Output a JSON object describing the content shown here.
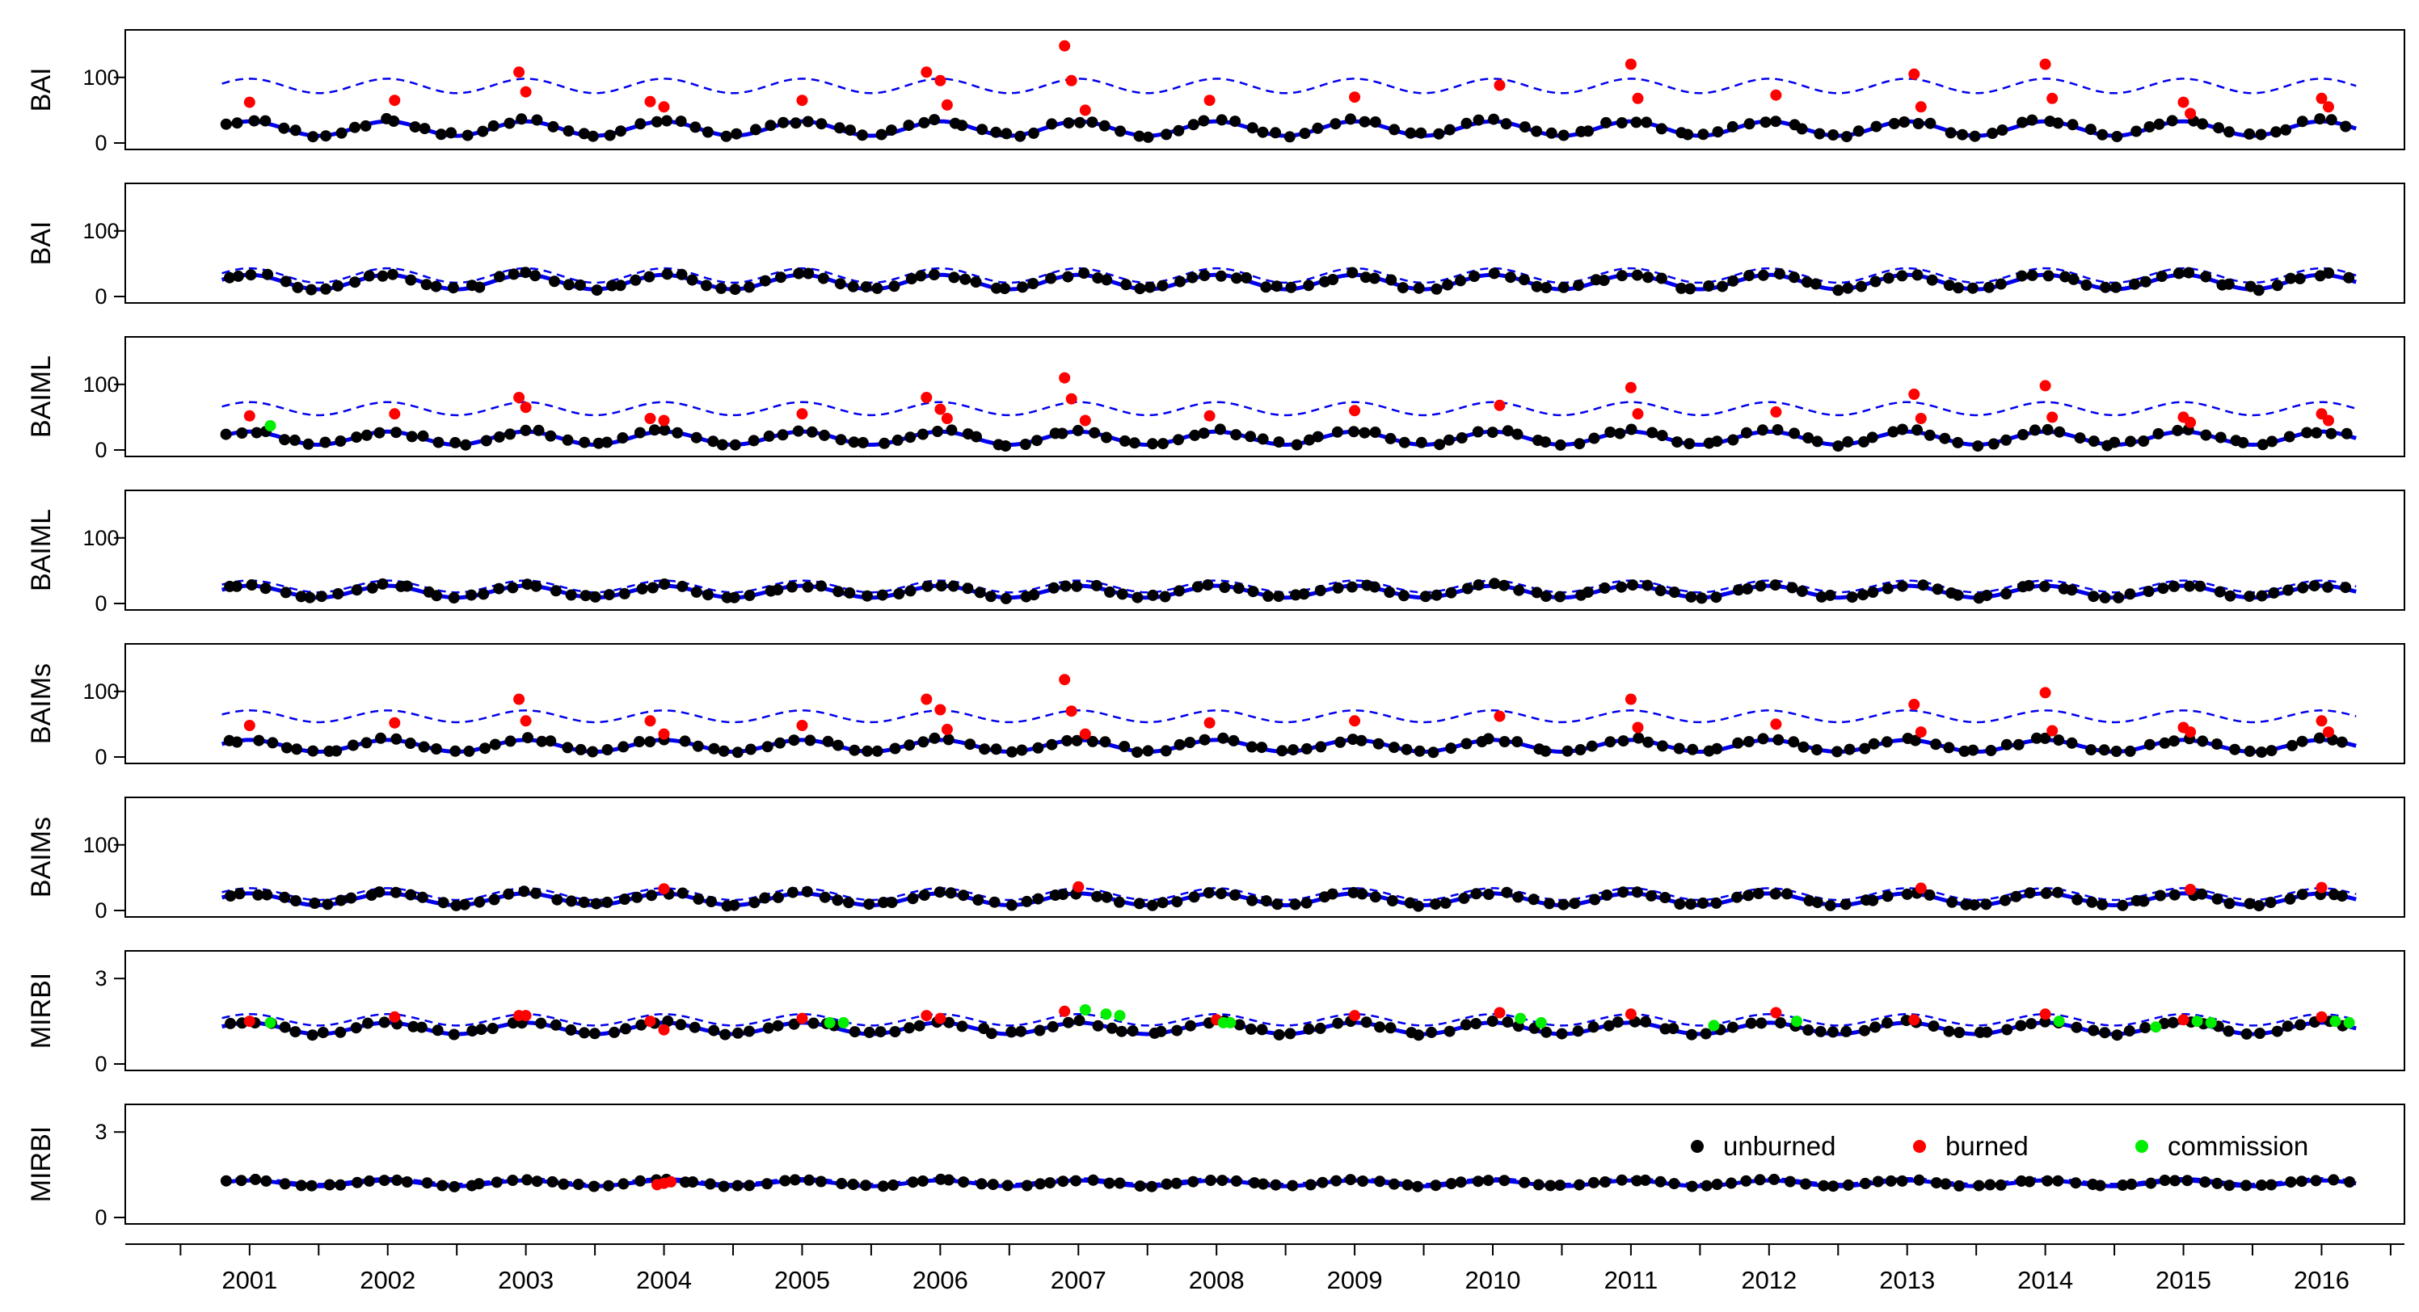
{
  "chart_data": [
    {
      "type": "scatter",
      "ylabel": "BAI",
      "ylim": [
        0,
        165
      ],
      "yticks": [
        0,
        100
      ],
      "amplitude_note": "seasonal harmonic fit (blue solid) with upper threshold (blue dashed)",
      "fit": {
        "mean": 22,
        "amplitude": 11,
        "band": 65
      },
      "series": [
        {
          "name": "unburned",
          "sample_values": [
            16,
            40,
            20,
            12,
            10,
            22,
            35,
            30,
            28,
            18,
            22,
            28,
            30,
            35,
            40,
            30,
            20,
            15,
            22,
            28,
            35,
            30,
            25,
            30
          ]
        },
        {
          "name": "burned",
          "points": [
            [
              2001.0,
              62
            ],
            [
              2002.05,
              65
            ],
            [
              2002.95,
              108
            ],
            [
              2003.0,
              78
            ],
            [
              2003.9,
              63
            ],
            [
              2004.0,
              55
            ],
            [
              2005.0,
              65
            ],
            [
              2005.9,
              108
            ],
            [
              2006.0,
              95
            ],
            [
              2006.05,
              58
            ],
            [
              2006.9,
              148
            ],
            [
              2006.95,
              95
            ],
            [
              2007.05,
              50
            ],
            [
              2007.95,
              65
            ],
            [
              2009.0,
              70
            ],
            [
              2010.05,
              88
            ],
            [
              2011.0,
              120
            ],
            [
              2011.05,
              68
            ],
            [
              2012.05,
              73
            ],
            [
              2013.05,
              105
            ],
            [
              2013.1,
              55
            ],
            [
              2014.0,
              120
            ],
            [
              2014.05,
              68
            ],
            [
              2015.0,
              62
            ],
            [
              2015.05,
              45
            ],
            [
              2016.0,
              68
            ],
            [
              2016.05,
              55
            ]
          ]
        }
      ]
    },
    {
      "type": "scatter",
      "ylabel": "BAI",
      "ylim": [
        0,
        165
      ],
      "yticks": [
        0,
        100
      ],
      "fit": {
        "mean": 22,
        "amplitude": 11,
        "band": 10
      },
      "series": [
        {
          "name": "unburned",
          "sample_values": [
            16,
            40,
            20,
            12,
            22,
            30,
            28,
            42,
            25,
            30,
            35,
            40,
            35,
            25,
            30,
            38,
            20,
            28
          ]
        }
      ]
    },
    {
      "type": "scatter",
      "ylabel": "BAIML",
      "ylim": [
        0,
        165
      ],
      "yticks": [
        0,
        100
      ],
      "fit": {
        "mean": 18,
        "amplitude": 10,
        "band": 45
      },
      "series": [
        {
          "name": "unburned",
          "sample_values": [
            14,
            30,
            18,
            10,
            22,
            28,
            26,
            35,
            25,
            30,
            30,
            28,
            32,
            25
          ]
        },
        {
          "name": "burned",
          "points": [
            [
              2001.0,
              52
            ],
            [
              2002.05,
              55
            ],
            [
              2002.95,
              80
            ],
            [
              2003.0,
              65
            ],
            [
              2003.9,
              48
            ],
            [
              2004.0,
              45
            ],
            [
              2005.0,
              55
            ],
            [
              2005.9,
              80
            ],
            [
              2006.0,
              62
            ],
            [
              2006.05,
              48
            ],
            [
              2006.9,
              110
            ],
            [
              2006.95,
              78
            ],
            [
              2007.05,
              45
            ],
            [
              2007.95,
              52
            ],
            [
              2009.0,
              60
            ],
            [
              2010.05,
              68
            ],
            [
              2011.0,
              95
            ],
            [
              2011.05,
              55
            ],
            [
              2012.05,
              58
            ],
            [
              2013.05,
              85
            ],
            [
              2013.1,
              48
            ],
            [
              2014.0,
              98
            ],
            [
              2014.05,
              50
            ],
            [
              2015.0,
              50
            ],
            [
              2015.05,
              42
            ],
            [
              2016.0,
              55
            ],
            [
              2016.05,
              45
            ]
          ]
        },
        {
          "name": "commission",
          "points": [
            [
              2001.15,
              37
            ]
          ]
        }
      ]
    },
    {
      "type": "scatter",
      "ylabel": "BAIML",
      "ylim": [
        0,
        165
      ],
      "yticks": [
        0,
        100
      ],
      "fit": {
        "mean": 18,
        "amplitude": 9,
        "band": 8
      },
      "series": [
        {
          "name": "unburned",
          "sample_values": [
            14,
            25,
            15,
            10,
            20,
            28,
            25,
            32,
            22,
            30,
            28,
            25,
            30,
            25
          ]
        }
      ]
    },
    {
      "type": "scatter",
      "ylabel": "BAIMs",
      "ylim": [
        0,
        165
      ],
      "yticks": [
        0,
        100
      ],
      "fit": {
        "mean": 17,
        "amplitude": 9,
        "band": 45
      },
      "series": [
        {
          "name": "unburned",
          "sample_values": [
            14,
            28,
            16,
            10,
            20,
            26,
            22,
            30,
            20,
            28,
            26,
            24,
            28,
            22
          ]
        },
        {
          "name": "burned",
          "points": [
            [
              2001.0,
              48
            ],
            [
              2002.05,
              52
            ],
            [
              2002.95,
              88
            ],
            [
              2003.0,
              55
            ],
            [
              2003.9,
              55
            ],
            [
              2004.0,
              35
            ],
            [
              2005.0,
              48
            ],
            [
              2005.9,
              88
            ],
            [
              2006.0,
              72
            ],
            [
              2006.05,
              42
            ],
            [
              2006.9,
              118
            ],
            [
              2006.95,
              70
            ],
            [
              2007.05,
              35
            ],
            [
              2007.95,
              52
            ],
            [
              2009.0,
              55
            ],
            [
              2010.05,
              62
            ],
            [
              2011.0,
              88
            ],
            [
              2011.05,
              45
            ],
            [
              2012.05,
              50
            ],
            [
              2013.05,
              80
            ],
            [
              2013.1,
              38
            ],
            [
              2014.0,
              98
            ],
            [
              2014.05,
              40
            ],
            [
              2015.0,
              45
            ],
            [
              2015.05,
              38
            ],
            [
              2016.0,
              55
            ],
            [
              2016.05,
              38
            ]
          ]
        }
      ]
    },
    {
      "type": "scatter",
      "ylabel": "BAIMs",
      "ylim": [
        0,
        165
      ],
      "yticks": [
        0,
        100
      ],
      "fit": {
        "mean": 17,
        "amplitude": 9,
        "band": 8
      },
      "series": [
        {
          "name": "unburned",
          "sample_values": [
            14,
            28,
            15,
            10,
            20,
            26,
            22,
            30,
            20,
            28,
            26,
            24,
            28,
            20
          ]
        },
        {
          "name": "burned",
          "points": [
            [
              2004.0,
              33
            ],
            [
              2007.0,
              36
            ],
            [
              2013.1,
              34
            ],
            [
              2015.05,
              32
            ],
            [
              2016.0,
              35
            ]
          ]
        }
      ]
    },
    {
      "type": "scatter",
      "ylabel": "MIRBI",
      "ylim": [
        0,
        3.8
      ],
      "yticks": [
        0,
        3
      ],
      "fit": {
        "mean": 1.25,
        "amplitude": 0.2,
        "band": 0.3
      },
      "series": [
        {
          "name": "unburned",
          "sample_values": [
            1.1,
            1.3,
            1.2,
            1.0,
            1.1,
            1.4,
            1.2,
            1.3,
            1.1,
            1.0,
            1.2,
            1.3,
            1.1,
            1.0
          ]
        },
        {
          "name": "burned",
          "points": [
            [
              2001.0,
              1.5
            ],
            [
              2002.05,
              1.65
            ],
            [
              2002.95,
              1.7
            ],
            [
              2003.0,
              1.7
            ],
            [
              2003.9,
              1.5
            ],
            [
              2004.0,
              1.2
            ],
            [
              2005.0,
              1.6
            ],
            [
              2005.9,
              1.7
            ],
            [
              2006.0,
              1.6
            ],
            [
              2006.9,
              1.85
            ],
            [
              2008.0,
              1.55
            ],
            [
              2009.0,
              1.7
            ],
            [
              2010.05,
              1.8
            ],
            [
              2011.0,
              1.75
            ],
            [
              2012.05,
              1.8
            ],
            [
              2013.05,
              1.55
            ],
            [
              2014.0,
              1.75
            ],
            [
              2015.0,
              1.55
            ],
            [
              2016.0,
              1.65
            ]
          ]
        },
        {
          "name": "commission",
          "points": [
            [
              2001.15,
              1.45
            ],
            [
              2005.2,
              1.45
            ],
            [
              2005.3,
              1.45
            ],
            [
              2007.05,
              1.9
            ],
            [
              2007.2,
              1.75
            ],
            [
              2007.3,
              1.7
            ],
            [
              2008.05,
              1.45
            ],
            [
              2008.1,
              1.45
            ],
            [
              2010.2,
              1.6
            ],
            [
              2010.35,
              1.45
            ],
            [
              2011.6,
              1.35
            ],
            [
              2012.2,
              1.5
            ],
            [
              2014.1,
              1.5
            ],
            [
              2014.8,
              1.3
            ],
            [
              2015.1,
              1.5
            ],
            [
              2015.2,
              1.45
            ],
            [
              2016.1,
              1.5
            ],
            [
              2016.2,
              1.45
            ]
          ]
        }
      ]
    },
    {
      "type": "scatter",
      "ylabel": "MIRBI",
      "ylim": [
        0,
        3.8
      ],
      "yticks": [
        0,
        3
      ],
      "fit": {
        "mean": 1.2,
        "amplitude": 0.1,
        "band": 0.08
      },
      "series": [
        {
          "name": "unburned",
          "sample_values": [
            1.1,
            1.3,
            1.2,
            1.0,
            1.2,
            1.3,
            1.1,
            1.2,
            1.1,
            1.0,
            1.2,
            1.3,
            1.1,
            1.1
          ]
        },
        {
          "name": "burned",
          "points": [
            [
              2003.95,
              1.15
            ],
            [
              2004.0,
              1.2
            ],
            [
              2004.05,
              1.25
            ]
          ]
        }
      ]
    }
  ],
  "xaxis": {
    "ticks": [
      "2001",
      "2002",
      "2003",
      "2004",
      "2005",
      "2006",
      "2007",
      "2008",
      "2009",
      "2010",
      "2011",
      "2012",
      "2013",
      "2014",
      "2015",
      "2016"
    ],
    "range": [
      2000.1,
      2016.6
    ],
    "data_range": [
      2000.8,
      2016.25
    ]
  },
  "legend": {
    "placement": "bottom panel, top-right",
    "entries": [
      {
        "label": "unburned",
        "color": "#000000"
      },
      {
        "label": "burned",
        "color": "#ff0000"
      },
      {
        "label": "commission",
        "color": "#00ee00"
      }
    ]
  },
  "colors": {
    "fit": "#0000ee",
    "threshold": "#0000ee",
    "unburned": "#000000",
    "burned": "#ff0000",
    "commission": "#00ee00",
    "frame": "#000000"
  }
}
